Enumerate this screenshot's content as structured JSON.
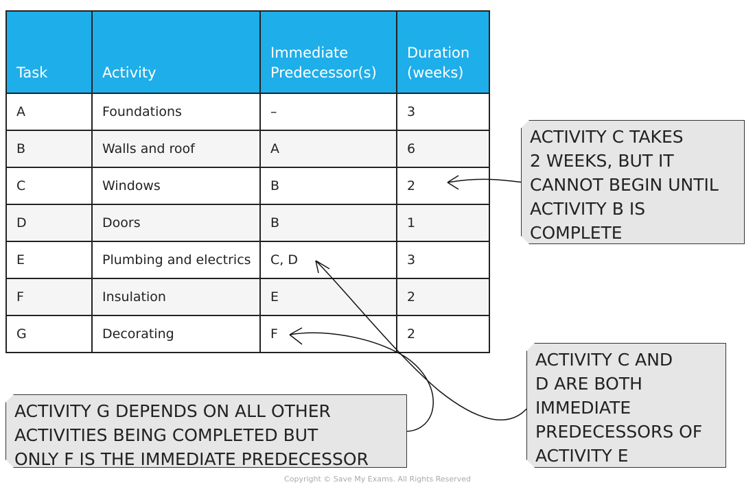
{
  "table": {
    "headers": [
      "Task",
      "Activity",
      "Immediate Predecessor(s)",
      "Duration (weeks)"
    ],
    "header_lines": [
      [
        "Task"
      ],
      [
        "Activity"
      ],
      [
        "Immediate",
        "Predecessor(s)"
      ],
      [
        "Duration",
        "(weeks)"
      ]
    ],
    "rows": [
      [
        "A",
        "Foundations",
        "–",
        "3"
      ],
      [
        "B",
        "Walls and roof",
        "A",
        "6"
      ],
      [
        "C",
        "Windows",
        "B",
        "2"
      ],
      [
        "D",
        "Doors",
        "B",
        "1"
      ],
      [
        "E",
        "Plumbing and electrics",
        "C, D",
        "3"
      ],
      [
        "F",
        "Insulation",
        "E",
        "2"
      ],
      [
        "G",
        "Decorating",
        "F",
        "2"
      ]
    ]
  },
  "notes": [
    {
      "lines": [
        "ACTIVITY C TAKES",
        "2 WEEKS, BUT IT",
        "CANNOT BEGIN UNTIL",
        "ACTIVITY B IS",
        "COMPLETE"
      ]
    },
    {
      "lines": [
        "ACTIVITY C AND",
        "D ARE BOTH",
        "IMMEDIATE",
        "PREDECESSORS OF",
        "ACTIVITY E"
      ]
    },
    {
      "lines": [
        "ACTIVITY G DEPENDS ON ALL OTHER",
        "ACTIVITIES BEING COMPLETED BUT",
        "ONLY F IS THE IMMEDIATE PREDECESSOR"
      ]
    }
  ],
  "colors": {
    "header": "#1eaee9",
    "note_bg": "#e6e6e6",
    "stripe": "#f5f5f5"
  },
  "copyright": "Copyright © Save My Exams. All Rights Reserved"
}
